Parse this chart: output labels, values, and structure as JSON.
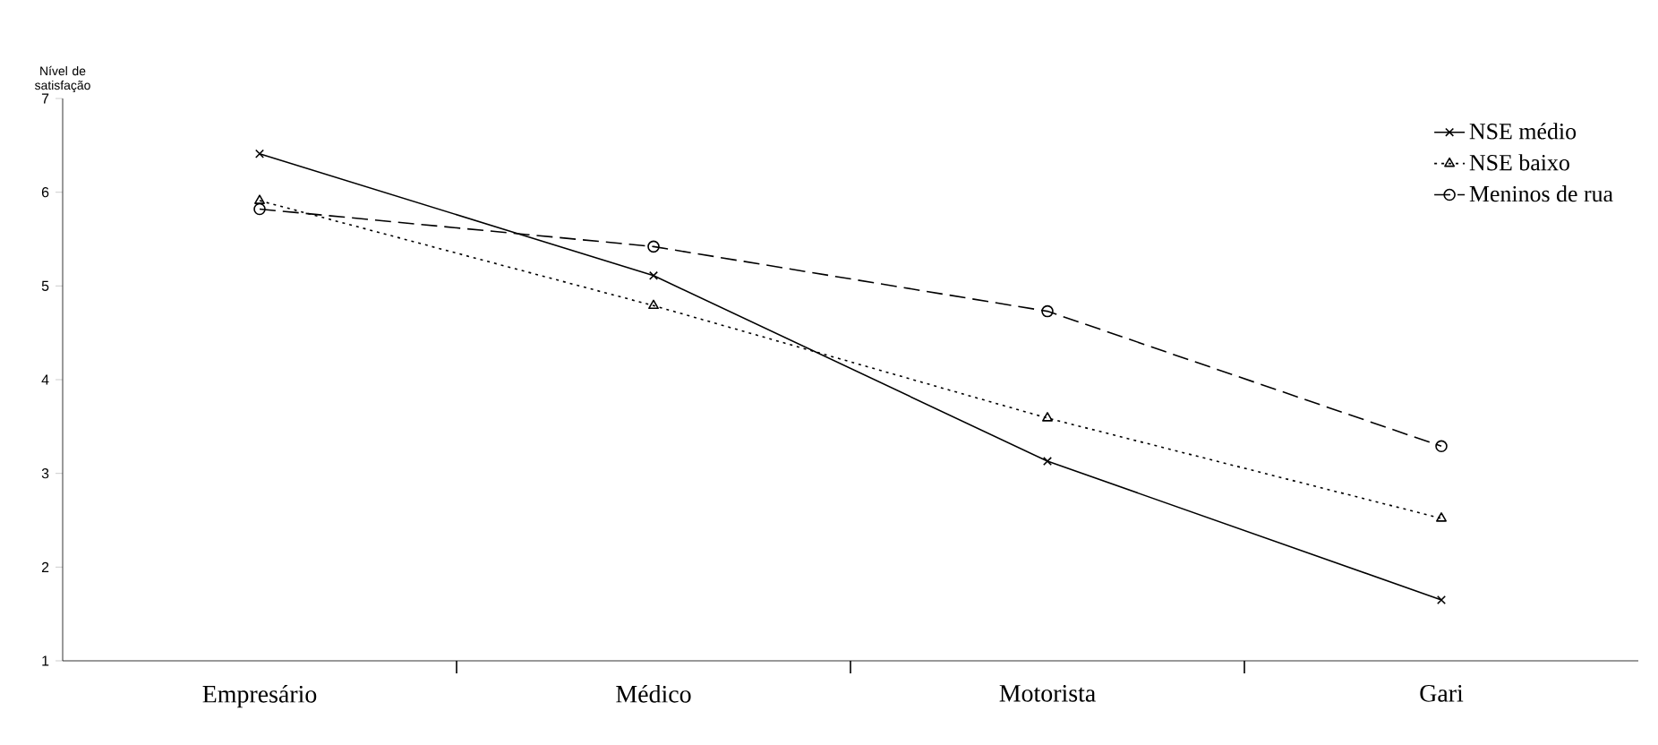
{
  "chart_data": {
    "type": "line",
    "ylabel": "Nível de satisfação",
    "categories": [
      "Empresário",
      "Médico",
      "Motorista",
      "Gari"
    ],
    "ylim": [
      1,
      7
    ],
    "yticks": [
      1,
      2,
      3,
      4,
      5,
      6,
      7
    ],
    "grid": false,
    "legend": "top right",
    "series": [
      {
        "name": "NSE médio",
        "color": "#000000",
        "values": [
          6.41,
          5.11,
          3.13,
          1.65
        ],
        "marker": "cross",
        "line_style": "solid"
      },
      {
        "name": "NSE baixo",
        "color": "#000000",
        "values": [
          5.91,
          4.79,
          3.59,
          2.52
        ],
        "marker": "triangle",
        "line_style": "dotted"
      },
      {
        "name": "Meninos de rua",
        "color": "#000000",
        "values": [
          5.82,
          5.42,
          4.73,
          3.29
        ],
        "marker": "circle",
        "line_style": "dashed"
      }
    ]
  }
}
